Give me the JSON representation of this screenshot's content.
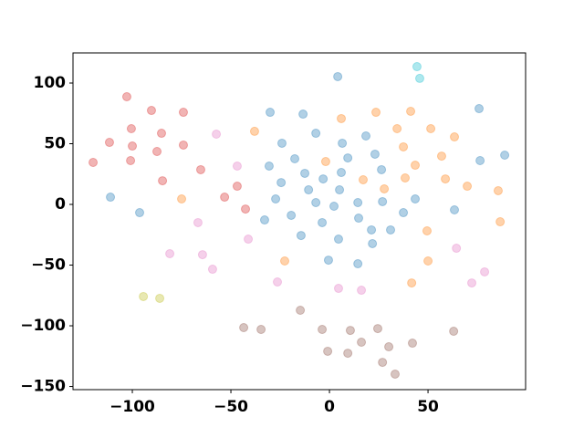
{
  "chart_data": {
    "type": "scatter",
    "xlim": [
      -130.1,
      99.5
    ],
    "ylim": [
      -152.6,
      124.8
    ],
    "xticks": [
      {
        "value": -100,
        "label": "−100"
      },
      {
        "value": -50,
        "label": "−50"
      },
      0,
      50
    ],
    "yticks": [
      {
        "value": -150,
        "label": "−150"
      },
      {
        "value": -100,
        "label": "−100"
      },
      {
        "value": -50,
        "label": "−50"
      },
      0,
      50,
      100
    ],
    "alpha": 0.35,
    "series": [
      {
        "color": "#1f77b4",
        "x": [
          -111.1,
          -96.3,
          -30.1,
          -13.4,
          -24.1,
          -6.9,
          -30.6,
          -24.5,
          -17.6,
          -12.5,
          -27.3,
          -32.9,
          -19.4,
          -10.6,
          -3.2,
          -6.9,
          -14.4,
          -3.7,
          2.3,
          5.1,
          6.0,
          9.3,
          6.5,
          4.2,
          18.5,
          23.1,
          26.4,
          14.4,
          14.8,
          21.3,
          26.9,
          31.0,
          37.5,
          43.5,
          -0.5,
          4.6,
          14.4,
          21.8,
          75.9,
          76.4,
          88.9,
          63.4
        ],
        "y": [
          6.0,
          -6.8,
          75.9,
          74.4,
          50.4,
          58.6,
          31.6,
          18.0,
          37.6,
          25.6,
          4.5,
          -12.8,
          -9.0,
          12.0,
          21.0,
          1.5,
          -25.6,
          -15.0,
          -1.5,
          12.0,
          26.3,
          38.3,
          50.4,
          105.3,
          56.4,
          41.4,
          28.6,
          1.5,
          -11.3,
          -21.0,
          2.3,
          -21.0,
          -6.8,
          4.5,
          -45.9,
          -28.6,
          -48.9,
          -32.3,
          78.9,
          36.1,
          40.6,
          -4.5
        ]
      },
      {
        "color": "#ff7f0e",
        "x": [
          6.0,
          23.6,
          -38.0,
          -1.9,
          17.1,
          27.8,
          34.3,
          41.2,
          37.5,
          43.5,
          38.4,
          51.4,
          56.9,
          58.8,
          63.4,
          69.9,
          85.6,
          86.6,
          49.5,
          50.0,
          41.7,
          -22.7,
          -75.0
        ],
        "y": [
          70.7,
          75.9,
          60.2,
          35.3,
          20.3,
          12.8,
          62.4,
          76.7,
          47.4,
          32.3,
          21.8,
          62.4,
          39.8,
          21.0,
          55.6,
          15.0,
          11.3,
          -14.3,
          -21.8,
          -46.6,
          -64.7,
          -46.6,
          4.5
        ]
      },
      {
        "color": "#d62728",
        "x": [
          -102.8,
          -90.3,
          -74.1,
          -100.5,
          -85.2,
          -100.0,
          -74.1,
          -111.6,
          -87.5,
          -100.9,
          -119.9,
          -65.3,
          -84.7,
          -46.8,
          -53.2,
          -42.6
        ],
        "y": [
          88.7,
          77.4,
          75.9,
          62.4,
          58.6,
          48.1,
          48.9,
          51.1,
          43.6,
          36.1,
          34.6,
          28.6,
          19.5,
          15.0,
          6.0,
          -3.8
        ]
      },
      {
        "color": "#e377c2",
        "x": [
          -57.4,
          -46.8,
          -66.7,
          -41.2,
          -81.0,
          -64.4,
          -59.3,
          -26.4,
          4.6,
          16.2,
          64.4,
          78.7,
          72.2
        ],
        "y": [
          57.9,
          31.6,
          -15.0,
          -28.6,
          -40.6,
          -41.4,
          -53.4,
          -63.9,
          -69.2,
          -70.7,
          -36.1,
          -55.6,
          -64.7
        ]
      },
      {
        "color": "#8c564b",
        "x": [
          -43.5,
          -34.7,
          -14.8,
          -3.7,
          -0.9,
          10.6,
          9.3,
          16.2,
          24.5,
          30.1,
          26.9,
          33.3,
          42.1,
          63.0
        ],
        "y": [
          -101.5,
          -103.0,
          -87.2,
          -103.0,
          -121.0,
          -103.8,
          -122.6,
          -113.5,
          -102.3,
          -117.3,
          -130.1,
          -139.8,
          -114.3,
          -104.5
        ]
      },
      {
        "color": "#bcbd22",
        "x": [
          -94.4,
          -86.1
        ],
        "y": [
          -75.9,
          -77.4
        ]
      },
      {
        "color": "#17becf",
        "x": [
          44.4,
          45.8
        ],
        "y": [
          113.5,
          103.8
        ]
      }
    ]
  }
}
